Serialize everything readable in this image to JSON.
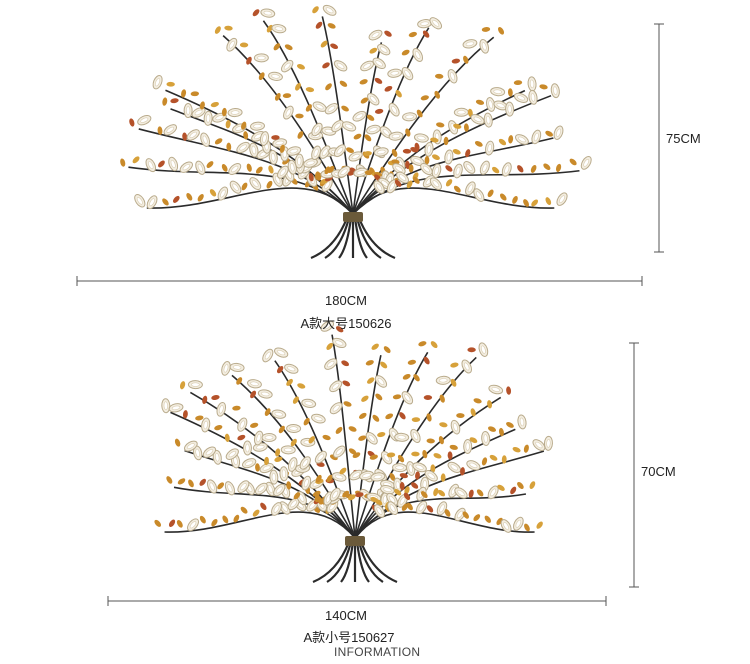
{
  "products": [
    {
      "width_label": "180CM",
      "height_label": "75CM",
      "model_label": "A款大号150626"
    },
    {
      "width_label": "140CM",
      "height_label": "70CM",
      "model_label": "A款小号150627"
    }
  ],
  "footer": {
    "label": "INFORMATION"
  }
}
